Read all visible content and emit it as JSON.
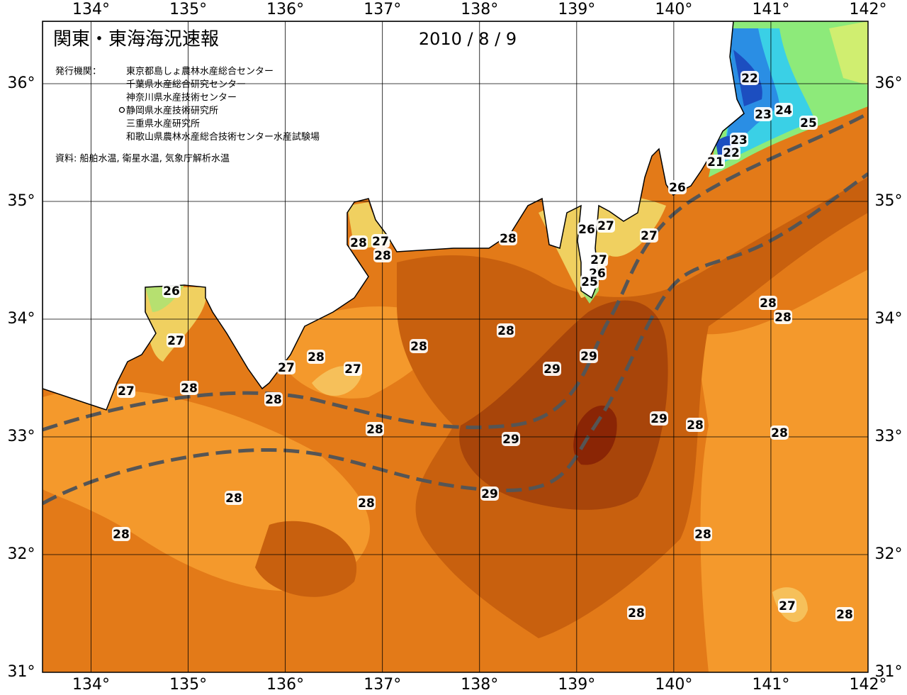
{
  "map": {
    "title": "関東・東海海況速報",
    "date": "2010 / 8 / 9",
    "issuer_label": "発行機関：",
    "agencies": [
      "東京都島しょ農林水産総合センター",
      "千葉県水産総合研究センター",
      "神奈川県水産技術センター",
      "静岡県水産技術研究所",
      "三重県水産研究所",
      "和歌山県農林水産総合技術センター水産試験場"
    ],
    "source": "資料: 船舶水温, 衛星水温, 気象庁解析水温",
    "lonlim": [
      133.5,
      142
    ],
    "latlim": [
      31,
      36.53
    ],
    "lonticks": [
      {
        "value": 134,
        "label": "134°"
      },
      {
        "value": 135,
        "label": "135°"
      },
      {
        "value": 136,
        "label": "136°"
      },
      {
        "value": 137,
        "label": "137°"
      },
      {
        "value": 138,
        "label": "138°"
      },
      {
        "value": 139,
        "label": "139°"
      },
      {
        "value": 140,
        "label": "140°"
      },
      {
        "value": 141,
        "label": "141°"
      },
      {
        "value": 142,
        "label": "142°"
      }
    ],
    "latticks": [
      {
        "value": 31,
        "label": "31°"
      },
      {
        "value": 32,
        "label": "32°"
      },
      {
        "value": 33,
        "label": "33°"
      },
      {
        "value": 34,
        "label": "34°"
      },
      {
        "value": 35,
        "label": "35°"
      },
      {
        "value": 36,
        "label": "36°"
      }
    ],
    "contour_labels": [
      26,
      27,
      27,
      28,
      28,
      27,
      28,
      27,
      28,
      27,
      28,
      28,
      28,
      28,
      28,
      29,
      29,
      29,
      29,
      28,
      28,
      28,
      26,
      27,
      27,
      27,
      26,
      25,
      26,
      22,
      23,
      24,
      25,
      23,
      22,
      21,
      28,
      28,
      28,
      29,
      28,
      28,
      28,
      27,
      28
    ]
  }
}
